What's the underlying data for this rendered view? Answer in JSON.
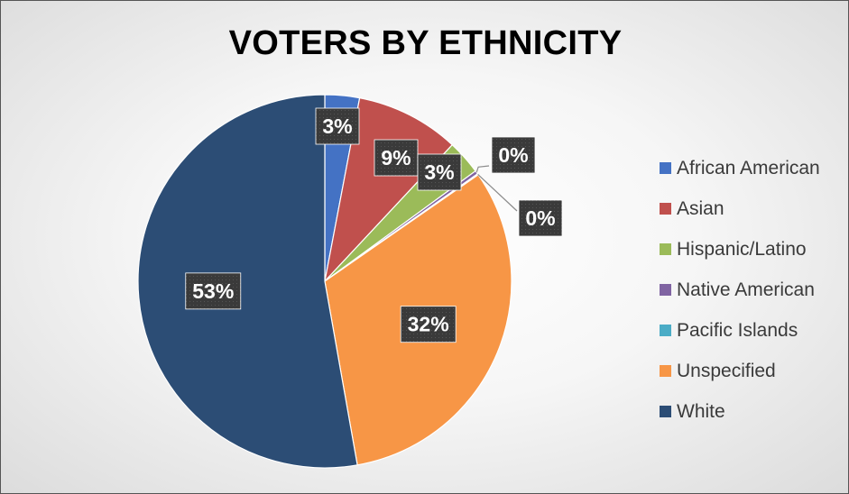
{
  "chart_data": {
    "type": "pie",
    "title": "VOTERS BY ETHNICITY",
    "slices": [
      {
        "name": "African American",
        "value": 3,
        "label": "3%",
        "color": "#4472C4"
      },
      {
        "name": "Asian",
        "value": 9,
        "label": "9%",
        "color": "#C0504D"
      },
      {
        "name": "Hispanic/Latino",
        "value": 3,
        "label": "3%",
        "color": "#9BBB59"
      },
      {
        "name": "Native American",
        "value": 0.3,
        "label": "0%",
        "color": "#8064A2"
      },
      {
        "name": "Pacific Islands",
        "value": 0.1,
        "label": "0%",
        "color": "#4BACC6"
      },
      {
        "name": "Unspecified",
        "value": 32,
        "label": "32%",
        "color": "#F79646"
      },
      {
        "name": "White",
        "value": 53,
        "label": "53%",
        "color": "#2C4D75"
      }
    ],
    "legend_position": "right",
    "start_angle": "12 o'clock",
    "direction": "clockwise"
  }
}
